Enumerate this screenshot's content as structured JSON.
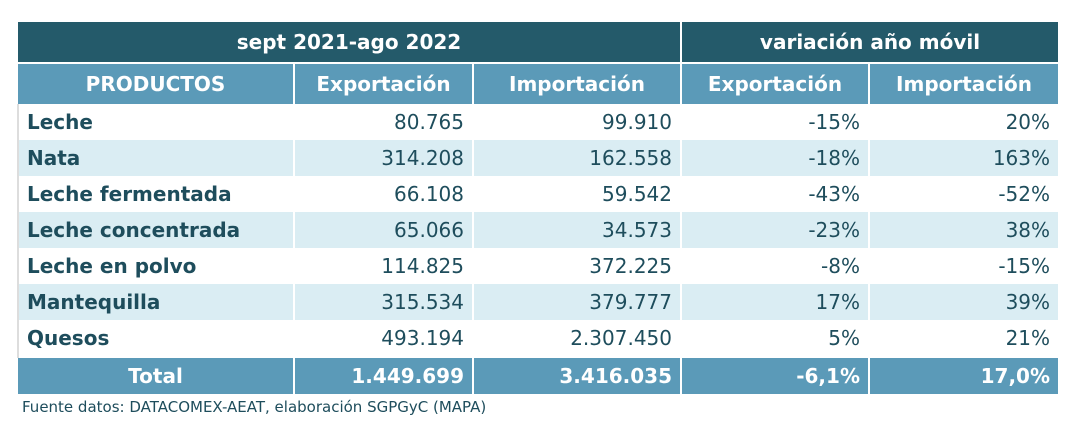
{
  "header": {
    "period": "sept 2021-ago 2022",
    "variation": "variación año móvil"
  },
  "columns": [
    "PRODUCTOS",
    "Exportación",
    "Importación",
    "Exportación",
    "Importación"
  ],
  "rows": [
    [
      "Leche",
      "80.765",
      "99.910",
      "-15%",
      "20%"
    ],
    [
      "Nata",
      "314.208",
      "162.558",
      "-18%",
      "163%"
    ],
    [
      "Leche fermentada",
      "66.108",
      "59.542",
      "-43%",
      "-52%"
    ],
    [
      "Leche concentrada",
      "65.066",
      "34.573",
      "-23%",
      "38%"
    ],
    [
      "Leche en polvo",
      "114.825",
      "372.225",
      "-8%",
      "-15%"
    ],
    [
      "Mantequilla",
      "315.534",
      "379.777",
      "17%",
      "39%"
    ],
    [
      "Quesos",
      "493.194",
      "2.307.450",
      "5%",
      "21%"
    ]
  ],
  "total": [
    "Total",
    "1.449.699",
    "3.416.035",
    "-6,1%",
    "17,0%"
  ],
  "source": "Fuente datos: DATACOMEX-AEAT, elaboración SGPGyC (MAPA)",
  "colors": {
    "dark_header": "#245a6a",
    "header": "#5b9ab8",
    "stripe": "#daedf3",
    "text": "#1e4d5c"
  }
}
